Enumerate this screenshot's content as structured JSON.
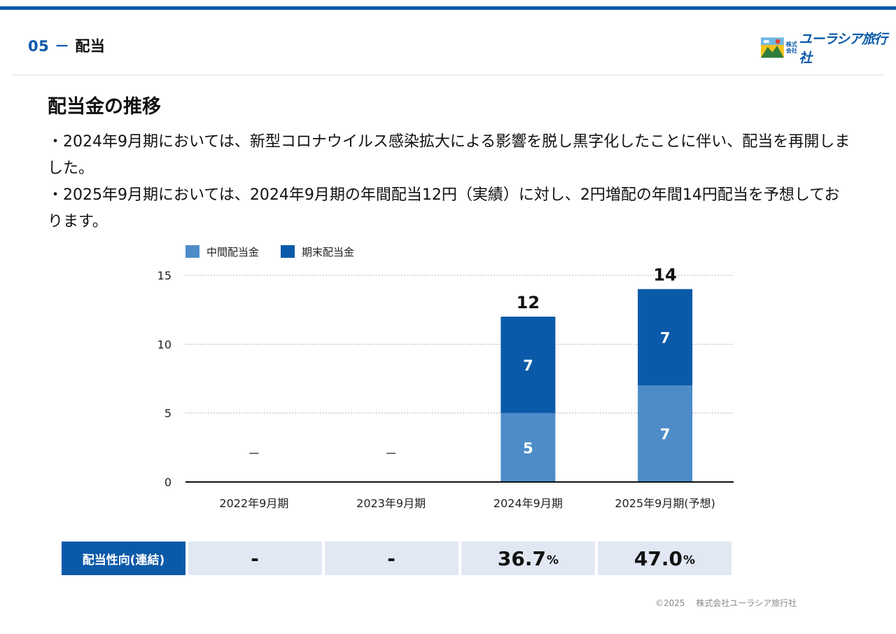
{
  "header": {
    "section_number": "05",
    "section_dash": "－",
    "section_name": "配当",
    "company_logo_small": "株式会社",
    "company_logo": "ユーラシア旅行社"
  },
  "main": {
    "heading": "配当金の推移",
    "paragraphs": [
      "・2024年9月期においては、新型コロナウイルス感染拡大による影響を脱し黒字化したことに伴い、配当を再開しました。",
      "・2025年9月期においては、2024年9月期の年間配当12円（実績）に対し、2円増配の年間14円配当を予想しております。"
    ]
  },
  "chart_data": {
    "type": "bar",
    "stacked": true,
    "categories": [
      "2022年9月期",
      "2023年9月期",
      "2024年9月期",
      "2025年9月期(予想)"
    ],
    "series": [
      {
        "name": "中間配当金",
        "values": [
          null,
          null,
          5,
          7
        ],
        "color": "#4d8cc8"
      },
      {
        "name": "期末配当金",
        "values": [
          null,
          null,
          7,
          7
        ],
        "color": "#0b5aa9"
      }
    ],
    "totals": [
      null,
      null,
      12,
      14
    ],
    "empty_marker": "－",
    "yticks": [
      0,
      5,
      10,
      15
    ],
    "ylim": [
      0,
      15
    ],
    "grid": true,
    "legend": "top-left"
  },
  "payout_ratio": {
    "label": "配当性向(連結)",
    "values": [
      {
        "value": "-",
        "unit": ""
      },
      {
        "value": "-",
        "unit": ""
      },
      {
        "value": "36.7",
        "unit": "%"
      },
      {
        "value": "47.0",
        "unit": "%"
      }
    ]
  },
  "footer": {
    "copyright": "©2025　 株式会社ユーラシア旅行社"
  },
  "colors": {
    "accent": "#0b5aa9",
    "light_accent": "#4d8cc8",
    "table_cell_bg": "#e2e8f3"
  }
}
